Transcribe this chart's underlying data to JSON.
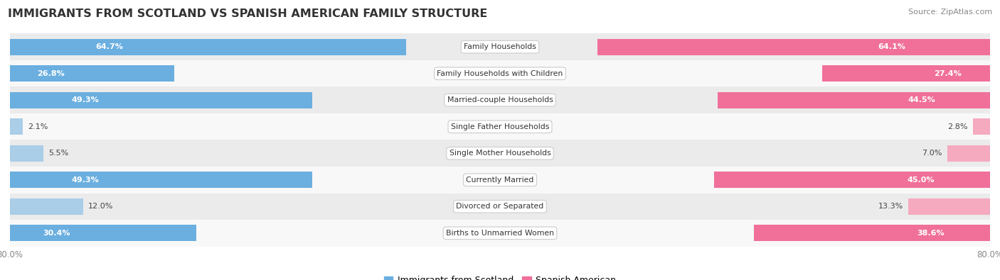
{
  "title": "IMMIGRANTS FROM SCOTLAND VS SPANISH AMERICAN FAMILY STRUCTURE",
  "source": "Source: ZipAtlas.com",
  "categories": [
    "Family Households",
    "Family Households with Children",
    "Married-couple Households",
    "Single Father Households",
    "Single Mother Households",
    "Currently Married",
    "Divorced or Separated",
    "Births to Unmarried Women"
  ],
  "scotland_values": [
    64.7,
    26.8,
    49.3,
    2.1,
    5.5,
    49.3,
    12.0,
    30.4
  ],
  "spanish_values": [
    64.1,
    27.4,
    44.5,
    2.8,
    7.0,
    45.0,
    13.3,
    38.6
  ],
  "scotland_color_strong": "#6aafe0",
  "scotland_color_light": "#aacde8",
  "spanish_color_strong": "#f07099",
  "spanish_color_light": "#f5aabf",
  "label_inside_threshold": 15.0,
  "max_val": 80.0,
  "bar_height": 0.62,
  "row_bg_even": "#ebebeb",
  "row_bg_odd": "#f8f8f8",
  "label_fontsize": 8.0,
  "category_fontsize": 7.8,
  "title_fontsize": 11.5,
  "source_fontsize": 8.0,
  "legend_fontsize": 9.0,
  "axis_tick_fontsize": 8.5
}
